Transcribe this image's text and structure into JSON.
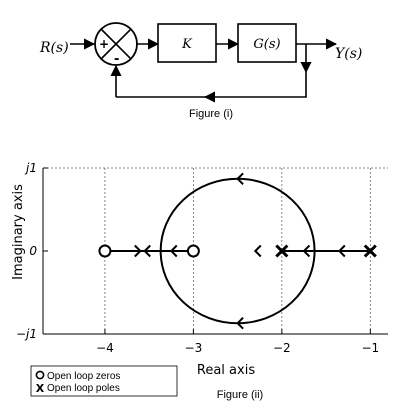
{
  "figure1": {
    "input_label": "R(s)",
    "output_label": "Y(s)",
    "plus_sign": "+",
    "minus_sign": "-",
    "block_k": "K",
    "block_g": "G(s)",
    "caption": "Figure (i)"
  },
  "figure2": {
    "ylabel": "Imaginary axis",
    "xlabel": "Real axis",
    "caption": "Figure (ii)",
    "x_ticks": [
      {
        "value": -4,
        "label": "−4"
      },
      {
        "value": -3,
        "label": "−3"
      },
      {
        "value": -2,
        "label": "−2"
      },
      {
        "value": -1,
        "label": "−1"
      }
    ],
    "y_ticks": [
      {
        "value": 1,
        "label": "j1"
      },
      {
        "value": 0,
        "label": "0"
      },
      {
        "value": -1,
        "label": "−j1"
      }
    ],
    "legend": {
      "zeros_label": "Open loop zeros",
      "poles_label": "Open loop poles"
    }
  },
  "chart_data": {
    "type": "scatter",
    "xlabel": "Real axis",
    "ylabel": "Imaginary axis",
    "xlim": [
      -4.7,
      -0.8
    ],
    "ylim": [
      -1.0,
      1.0
    ],
    "grid": "dashed lines at ticks",
    "open_loop_zeros": [
      {
        "re": -4,
        "im": 0
      },
      {
        "re": -3,
        "im": 0
      }
    ],
    "open_loop_poles": [
      {
        "re": -2,
        "im": 0
      },
      {
        "re": -1,
        "im": 0
      }
    ],
    "root_locus_circle": {
      "center": [
        -2.5,
        0
      ],
      "radius": 0.87
    },
    "real_axis_branches": [
      [
        -2,
        -1
      ],
      [
        -4,
        -3
      ]
    ]
  }
}
